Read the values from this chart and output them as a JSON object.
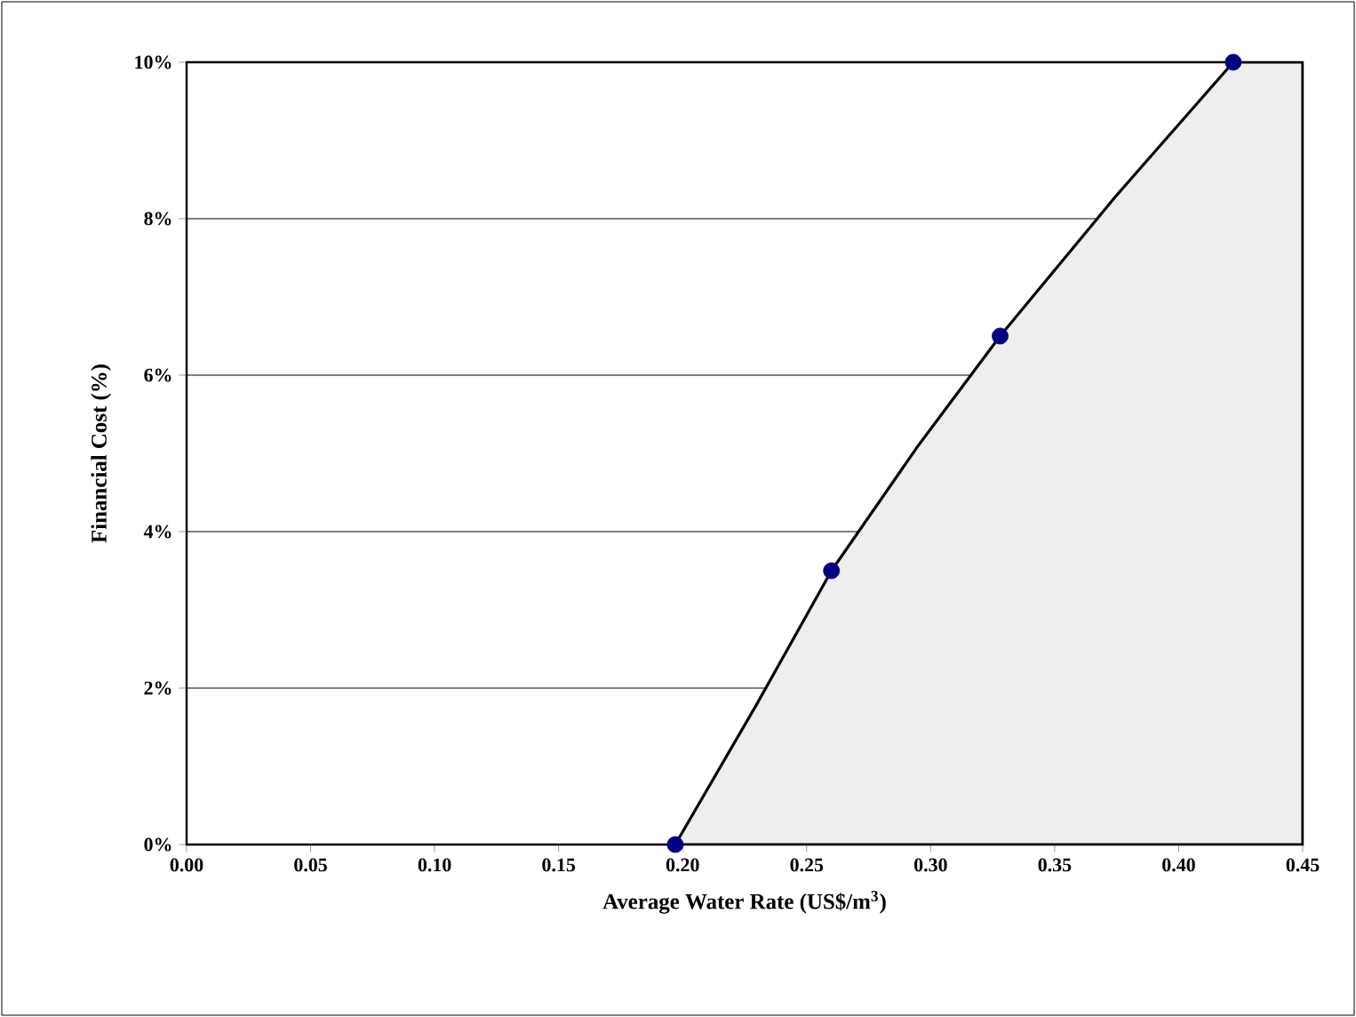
{
  "chart_data": {
    "type": "area",
    "xlabel": "Average Water Rate (US$/m$^{3}$)",
    "ylabel": "Financial Cost (%)",
    "series": [
      {
        "color": "#eeeeee",
        "x": [
          0.197,
          0.23,
          0.26,
          0.295,
          0.328,
          0.375,
          0.422,
          0.45
        ],
        "values": [
          0,
          1.8,
          3.5,
          5.1,
          6.5,
          8.3,
          10,
          10
        ]
      },
      {
        "type": "scatter",
        "color": "#000080",
        "marker": "circle",
        "x": [
          0.197,
          0.26,
          0.328,
          0.422
        ],
        "values": [
          0,
          3.5,
          6.5,
          10
        ]
      }
    ],
    "xlim": [
      0,
      0.45
    ],
    "ylim": [
      0,
      10
    ],
    "xticks": [
      {
        "value": 0,
        "label": "0.00"
      },
      {
        "value": 0.05,
        "label": "0.05"
      },
      {
        "value": 0.1,
        "label": "0.10"
      },
      {
        "value": 0.15,
        "label": "0.15"
      },
      {
        "value": 0.2,
        "label": "0.20"
      },
      {
        "value": 0.25,
        "label": "0.25"
      },
      {
        "value": 0.3,
        "label": "0.30"
      },
      {
        "value": 0.35,
        "label": "0.35"
      },
      {
        "value": 0.4,
        "label": "0.40"
      },
      {
        "value": 0.45,
        "label": "0.45"
      }
    ],
    "yticks": [
      {
        "value": 0,
        "label": "0%"
      },
      {
        "value": 2,
        "label": "2%"
      },
      {
        "value": 4,
        "label": "4%"
      },
      {
        "value": 6,
        "label": "6%"
      },
      {
        "value": 8,
        "label": "8%"
      },
      {
        "value": 10,
        "label": "10%"
      }
    ],
    "grid": "y"
  }
}
